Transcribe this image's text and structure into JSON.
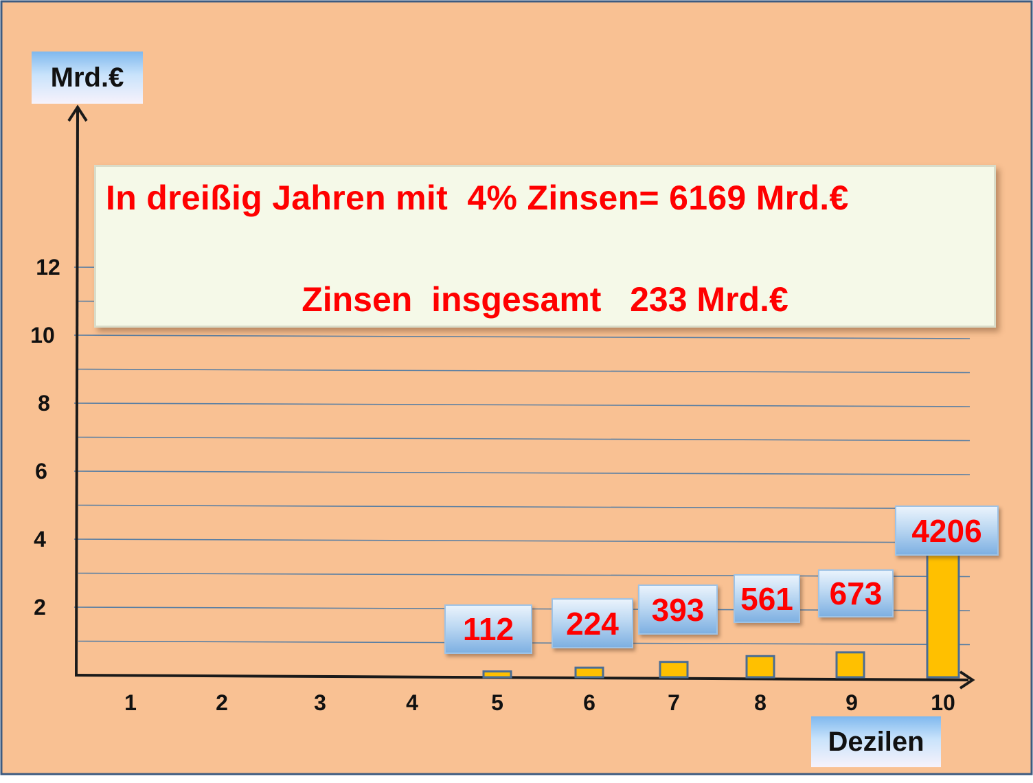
{
  "unit_label": "Mrd.€",
  "x_axis_label": "Dezilen",
  "info": {
    "line1": "In dreißig Jahren mit  4% Zinsen= 6169 Mrd.€",
    "line2": "Zinsen  insgesamt   233 Mrd.€"
  },
  "colors": {
    "background": "#f9c193",
    "frame": "#3d5b80",
    "bar_fill": "#ffc000",
    "bar_stroke": "#4a6d93",
    "value_text": "#ff0000",
    "gridline": "#5a7fa3"
  },
  "chart_data": {
    "type": "bar",
    "title": "",
    "xlabel": "Dezilen",
    "ylabel": "Mrd.€",
    "y_tick_labels": [
      "2",
      "4",
      "6",
      "8",
      "10",
      "12"
    ],
    "categories": [
      "1",
      "2",
      "3",
      "4",
      "5",
      "6",
      "7",
      "8",
      "9",
      "10"
    ],
    "data_labels": [
      "",
      "",
      "",
      "",
      "112",
      "224",
      "393",
      "561",
      "673",
      "4206"
    ],
    "values": [
      0,
      0,
      0,
      0,
      0.11,
      0.22,
      0.39,
      0.56,
      0.67,
      4.21
    ],
    "ylim": [
      0,
      12
    ],
    "grid": true
  }
}
